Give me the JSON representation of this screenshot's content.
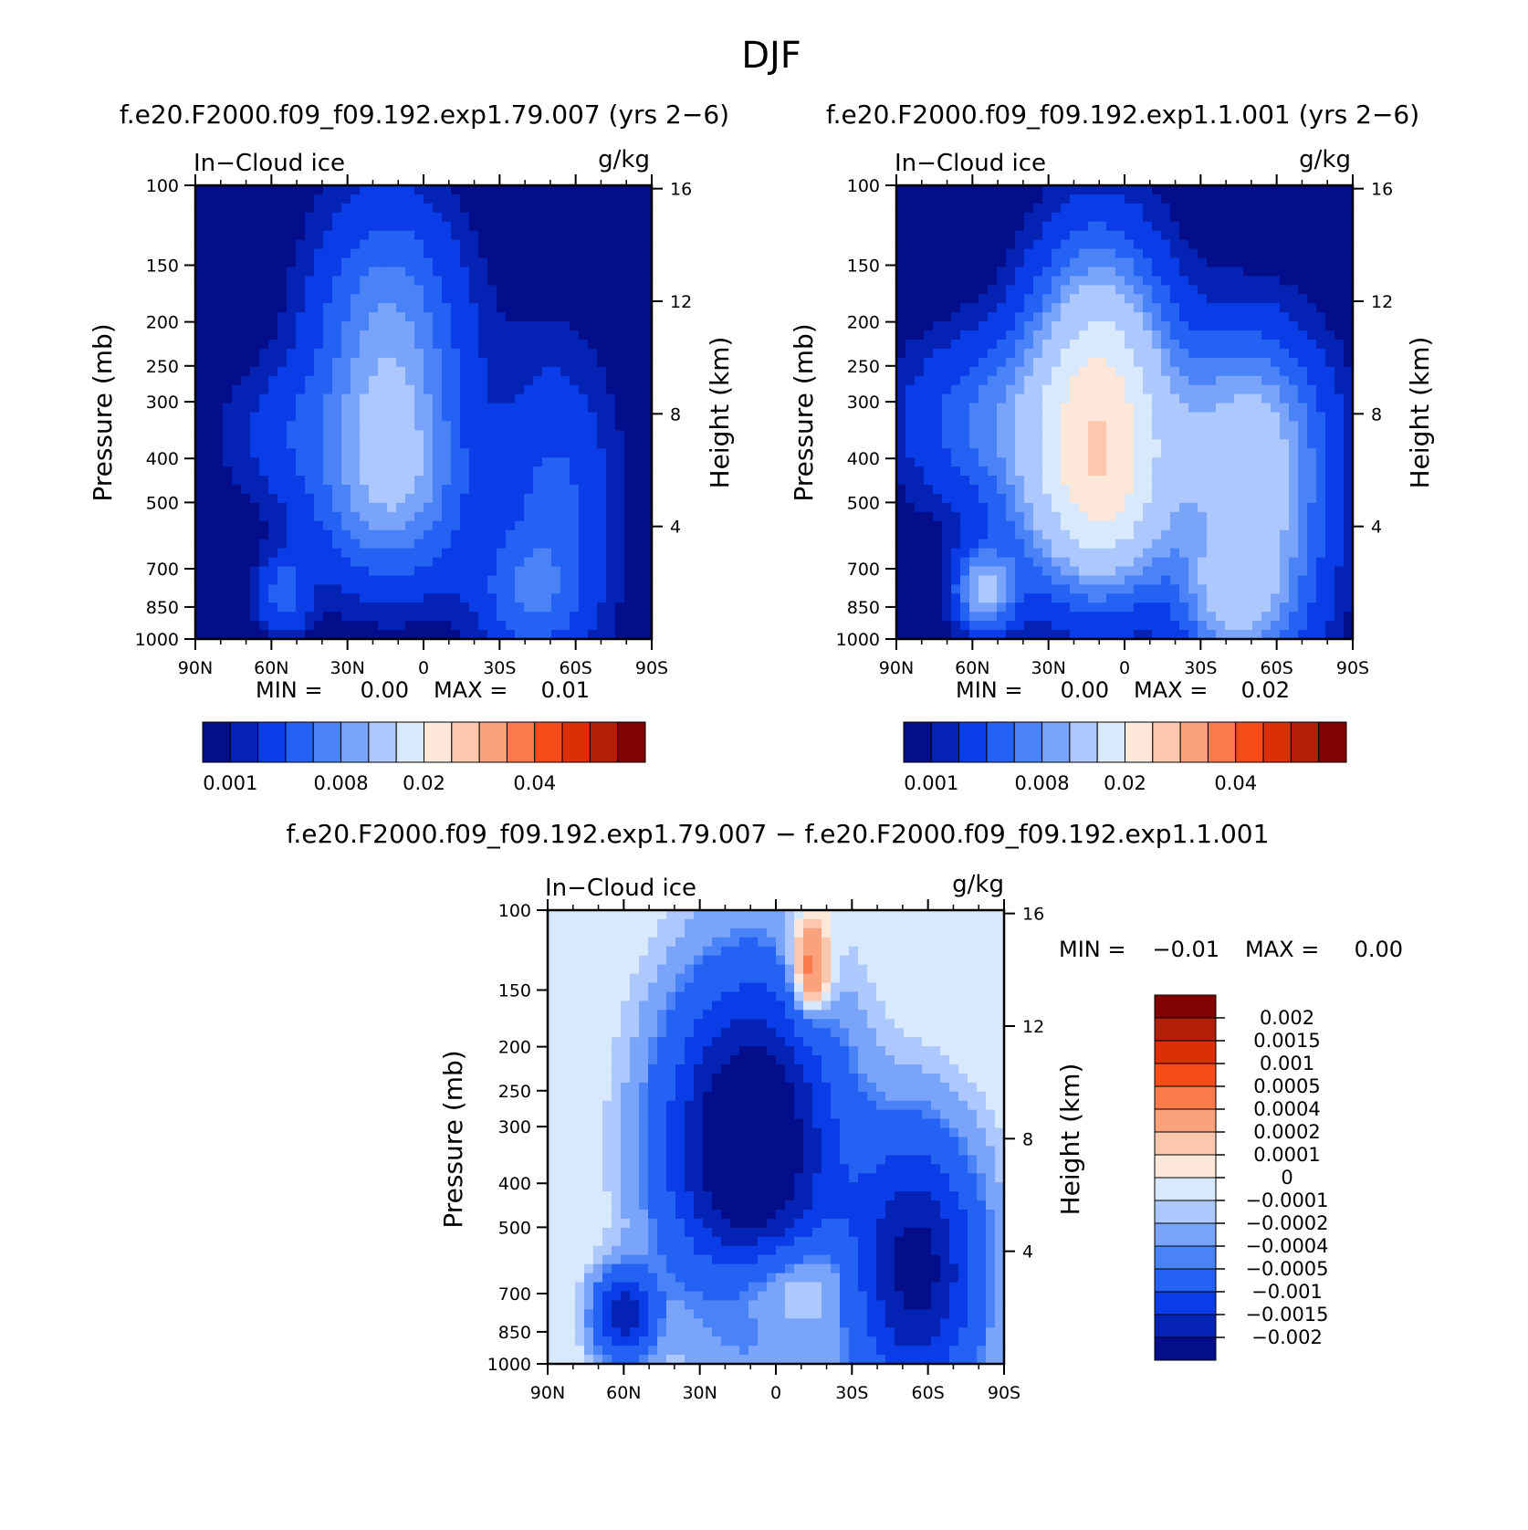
{
  "figure_title": "DJF",
  "chart_data": [
    {
      "type": "heatmap",
      "title": "f.e20.F2000.f09_f09.192.exp1.79.007 (yrs 2−6)",
      "field_label": "In−Cloud ice",
      "units": "g/kg",
      "xlabel": "",
      "ylabel": "Pressure (mb)",
      "ylabel_right": "Height (km)",
      "x_ticks": [
        "90N",
        "60N",
        "30N",
        "0",
        "30S",
        "60S",
        "90S"
      ],
      "x_range": [
        -90,
        90
      ],
      "y_ticks": [
        100,
        150,
        200,
        250,
        300,
        400,
        500,
        700,
        850,
        1000
      ],
      "y_range": [
        1000,
        100
      ],
      "y_right_ticks": [
        4,
        8,
        12,
        16
      ],
      "min_label": "MIN =",
      "min_value": "0.00",
      "max_label": "MAX =",
      "max_value": "0.01",
      "colorbar_labels": [
        "0.001",
        "0.008",
        "0.02",
        "0.04"
      ],
      "levels": [
        0.001,
        0.002,
        0.004,
        0.006,
        0.008,
        0.01,
        0.015,
        0.02,
        0.025,
        0.03,
        0.035,
        0.04,
        0.045,
        0.05
      ],
      "data_max": 0.01,
      "blobs": [
        {
          "lat": -14,
          "p": 230,
          "sx": 20,
          "sy": 0.5,
          "a": 0.86
        },
        {
          "lat": -14,
          "p": 520,
          "sx": 22,
          "sy": 0.3,
          "a": 0.55
        },
        {
          "lat": -10,
          "p": 380,
          "sx": 15,
          "sy": 0.3,
          "a": 0.35
        },
        {
          "lat": 52,
          "p": 520,
          "sx": 16,
          "sy": 0.55,
          "a": 0.45
        },
        {
          "lat": 40,
          "p": 800,
          "sx": 14,
          "sy": 0.2,
          "a": 0.4
        },
        {
          "lat": -55,
          "p": 800,
          "sx": 7,
          "sy": 0.14,
          "a": 0.5
        },
        {
          "lat": -52,
          "p": 350,
          "sx": 20,
          "sy": 0.25,
          "a": 0.25
        }
      ]
    },
    {
      "type": "heatmap",
      "title": "f.e20.F2000.f09_f09.192.exp1.1.001 (yrs 2−6)",
      "field_label": "In−Cloud ice",
      "units": "g/kg",
      "xlabel": "",
      "ylabel": "Pressure (mb)",
      "ylabel_right": "Height (km)",
      "x_ticks": [
        "90N",
        "60N",
        "30N",
        "0",
        "30S",
        "60S",
        "90S"
      ],
      "x_range": [
        -90,
        90
      ],
      "y_ticks": [
        100,
        150,
        200,
        250,
        300,
        400,
        500,
        700,
        850,
        1000
      ],
      "y_range": [
        1000,
        100
      ],
      "y_right_ticks": [
        4,
        8,
        12,
        16
      ],
      "min_label": "MIN =",
      "min_value": "0.00",
      "max_label": "MAX =",
      "max_value": "0.02",
      "colorbar_labels": [
        "0.001",
        "0.008",
        "0.02",
        "0.04"
      ],
      "levels": [
        0.001,
        0.002,
        0.004,
        0.006,
        0.008,
        0.01,
        0.015,
        0.02,
        0.025,
        0.03,
        0.035,
        0.04,
        0.045,
        0.05
      ],
      "data_max": 0.02,
      "blobs": [
        {
          "lat": -10,
          "p": 300,
          "sx": 18,
          "sy": 0.5,
          "a": 1.0
        },
        {
          "lat": -10,
          "p": 520,
          "sx": 22,
          "sy": 0.3,
          "a": 0.5
        },
        {
          "lat": 52,
          "p": 550,
          "sx": 18,
          "sy": 0.55,
          "a": 0.55
        },
        {
          "lat": 40,
          "p": 800,
          "sx": 12,
          "sy": 0.2,
          "a": 0.3
        },
        {
          "lat": -55,
          "p": 780,
          "sx": 8,
          "sy": 0.14,
          "a": 0.55
        },
        {
          "lat": -50,
          "p": 330,
          "sx": 25,
          "sy": 0.3,
          "a": 0.3
        },
        {
          "lat": 40,
          "p": 330,
          "sx": 25,
          "sy": 0.3,
          "a": 0.25
        }
      ]
    },
    {
      "type": "heatmap",
      "title": "f.e20.F2000.f09_f09.192.exp1.79.007 − f.e20.F2000.f09_f09.192.exp1.1.001",
      "field_label": "In−Cloud ice",
      "units": "g/kg",
      "xlabel": "",
      "ylabel": "Pressure (mb)",
      "ylabel_right": "Height (km)",
      "x_ticks": [
        "90N",
        "60N",
        "30N",
        "0",
        "30S",
        "60S",
        "90S"
      ],
      "x_range": [
        -90,
        90
      ],
      "y_ticks": [
        100,
        150,
        200,
        250,
        300,
        400,
        500,
        700,
        850,
        1000
      ],
      "y_range": [
        1000,
        100
      ],
      "y_right_ticks": [
        4,
        8,
        12,
        16
      ],
      "min_label": "MIN =",
      "min_value": "−0.01",
      "max_label": "MAX =",
      "max_value": "0.00",
      "colorbar_labels": [
        "0.002",
        "0.0015",
        "0.001",
        "0.0005",
        "0.0004",
        "0.0002",
        "0.0001",
        "0",
        "−0.0001",
        "−0.0002",
        "−0.0004",
        "−0.0005",
        "−0.001",
        "−0.0015",
        "−0.002"
      ],
      "levels": [
        -0.002,
        -0.0015,
        -0.001,
        -0.0005,
        -0.0004,
        -0.0002,
        -0.0001,
        0,
        0.0001,
        0.0002,
        0.0004,
        0.0005,
        0.001,
        0.0015,
        0.002
      ],
      "data_min": -0.01,
      "blobs": [
        {
          "lat": -10,
          "p": 330,
          "sx": 22,
          "sy": 0.55,
          "a": -1.0
        },
        {
          "lat": 55,
          "p": 620,
          "sx": 17,
          "sy": 0.45,
          "a": -0.75
        },
        {
          "lat": -60,
          "p": 780,
          "sx": 8,
          "sy": 0.15,
          "a": -0.6
        },
        {
          "lat": 0,
          "p": 650,
          "sx": 20,
          "sy": 0.18,
          "a": 0.3
        },
        {
          "lat": 13,
          "p": 140,
          "sx": 6,
          "sy": 0.2,
          "a": 0.3
        }
      ]
    }
  ],
  "colors": {
    "sequential": [
      "#040e8a",
      "#0422b3",
      "#0a3de8",
      "#2462f4",
      "#4a82f7",
      "#7aa3fa",
      "#adc8fc",
      "#d8e9fd",
      "#fde7d8",
      "#fcc7ad",
      "#fba27c",
      "#fb7a4d",
      "#f84b1a",
      "#dc2e07",
      "#b01f06",
      "#820202"
    ],
    "diverging": [
      "#040e8a",
      "#0422b3",
      "#0a3de8",
      "#2462f4",
      "#4a82f7",
      "#7aa3fa",
      "#adc8fc",
      "#d8e9fd",
      "#fde7d8",
      "#fcc7ad",
      "#fba27c",
      "#fb7a4d",
      "#f84b1a",
      "#dc2e07",
      "#b01f06",
      "#820202"
    ]
  }
}
